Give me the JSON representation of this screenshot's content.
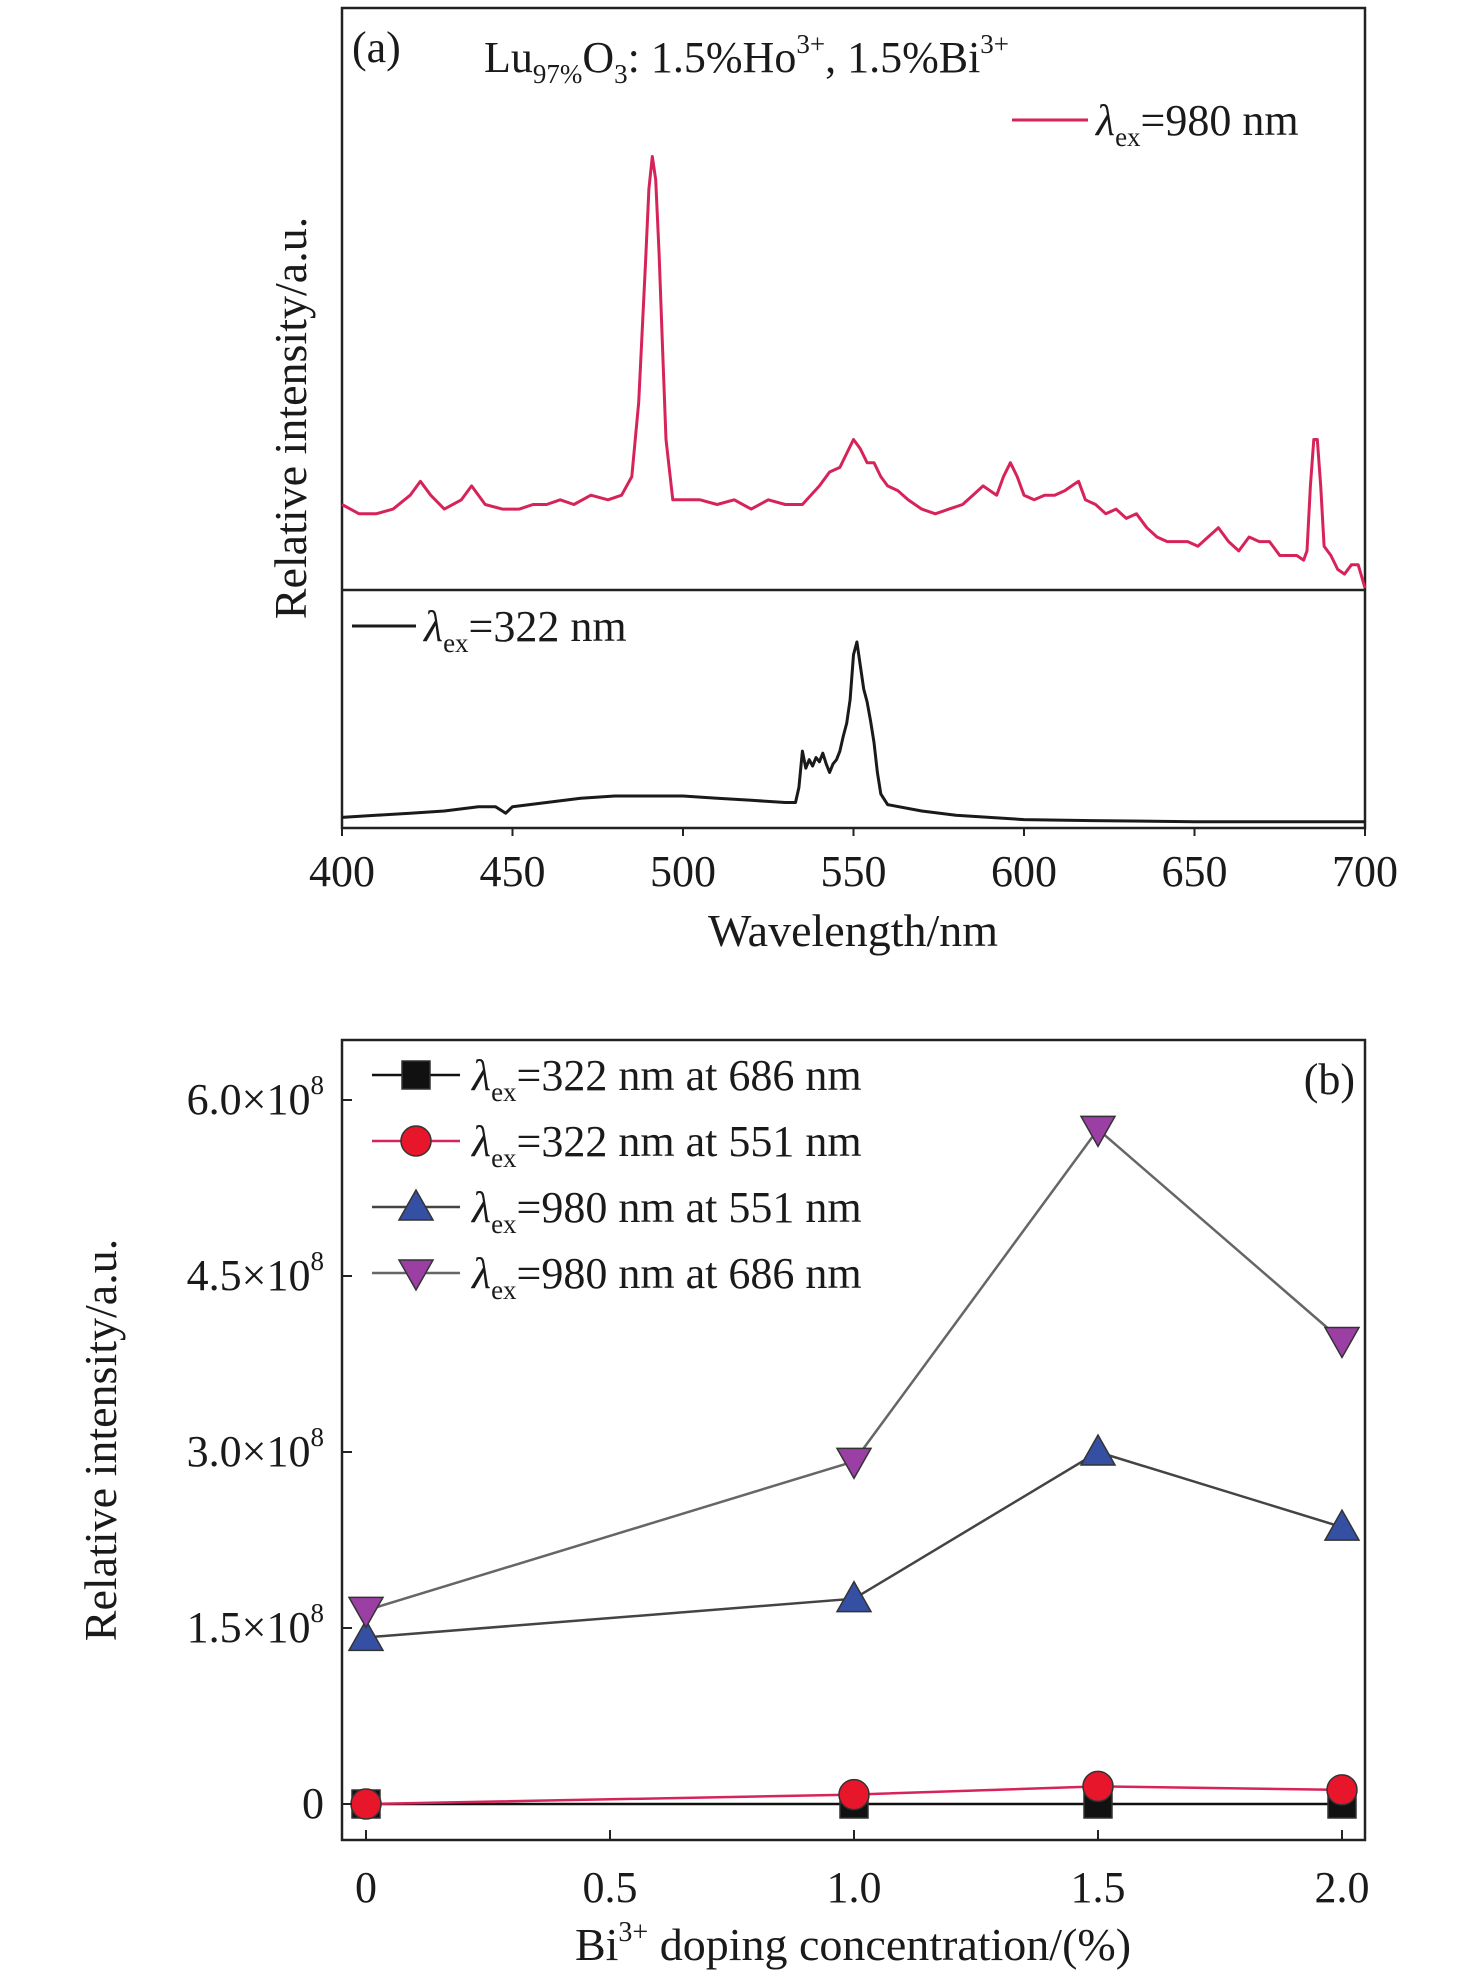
{
  "chart_data": [
    {
      "panel": "(a)",
      "type": "line",
      "title_parts": {
        "a": "Lu",
        "b": "97%",
        "c": "O",
        "d": "3",
        "e": ": 1.5%Ho",
        "f": "3+",
        "g": ", 1.5%Bi",
        "h": "3+"
      },
      "xlabel": "Wavelength/nm",
      "ylabel": "Relative intensity/a.u.",
      "xlim": [
        400,
        700
      ],
      "xticks": [
        "400",
        "450",
        "500",
        "550",
        "600",
        "650",
        "700"
      ],
      "grid": false,
      "series": [
        {
          "name": "980 nm",
          "legend": {
            "sym": "λ",
            "sub": "ex",
            "val": "=980 nm"
          },
          "color": "#d6245a",
          "subpanel": "top",
          "ylim": [
            0,
            1
          ],
          "points": [
            [
              400,
              0.18
            ],
            [
              405,
              0.16
            ],
            [
              410,
              0.16
            ],
            [
              415,
              0.17
            ],
            [
              420,
              0.2
            ],
            [
              423,
              0.23
            ],
            [
              426,
              0.2
            ],
            [
              430,
              0.17
            ],
            [
              435,
              0.19
            ],
            [
              438,
              0.22
            ],
            [
              442,
              0.18
            ],
            [
              447,
              0.17
            ],
            [
              452,
              0.17
            ],
            [
              456,
              0.18
            ],
            [
              460,
              0.18
            ],
            [
              464,
              0.19
            ],
            [
              468,
              0.18
            ],
            [
              473,
              0.2
            ],
            [
              478,
              0.19
            ],
            [
              482,
              0.2
            ],
            [
              485,
              0.24
            ],
            [
              487,
              0.4
            ],
            [
              489,
              0.7
            ],
            [
              490,
              0.86
            ],
            [
              491,
              0.93
            ],
            [
              492,
              0.88
            ],
            [
              493,
              0.72
            ],
            [
              494,
              0.52
            ],
            [
              495,
              0.32
            ],
            [
              497,
              0.19
            ],
            [
              500,
              0.19
            ],
            [
              505,
              0.19
            ],
            [
              510,
              0.18
            ],
            [
              515,
              0.19
            ],
            [
              520,
              0.17
            ],
            [
              525,
              0.19
            ],
            [
              530,
              0.18
            ],
            [
              535,
              0.18
            ],
            [
              540,
              0.22
            ],
            [
              543,
              0.25
            ],
            [
              546,
              0.26
            ],
            [
              548,
              0.29
            ],
            [
              550,
              0.32
            ],
            [
              552,
              0.3
            ],
            [
              554,
              0.27
            ],
            [
              556,
              0.27
            ],
            [
              558,
              0.24
            ],
            [
              560,
              0.22
            ],
            [
              563,
              0.21
            ],
            [
              566,
              0.19
            ],
            [
              570,
              0.17
            ],
            [
              574,
              0.16
            ],
            [
              578,
              0.17
            ],
            [
              582,
              0.18
            ],
            [
              585,
              0.2
            ],
            [
              588,
              0.22
            ],
            [
              590,
              0.21
            ],
            [
              592,
              0.2
            ],
            [
              594,
              0.24
            ],
            [
              596,
              0.27
            ],
            [
              598,
              0.24
            ],
            [
              600,
              0.2
            ],
            [
              603,
              0.19
            ],
            [
              606,
              0.2
            ],
            [
              609,
              0.2
            ],
            [
              612,
              0.21
            ],
            [
              614,
              0.22
            ],
            [
              616,
              0.23
            ],
            [
              618,
              0.19
            ],
            [
              621,
              0.18
            ],
            [
              624,
              0.16
            ],
            [
              627,
              0.17
            ],
            [
              630,
              0.15
            ],
            [
              633,
              0.16
            ],
            [
              636,
              0.13
            ],
            [
              639,
              0.11
            ],
            [
              642,
              0.1
            ],
            [
              645,
              0.1
            ],
            [
              648,
              0.1
            ],
            [
              651,
              0.09
            ],
            [
              654,
              0.11
            ],
            [
              657,
              0.13
            ],
            [
              660,
              0.1
            ],
            [
              663,
              0.08
            ],
            [
              666,
              0.11
            ],
            [
              669,
              0.1
            ],
            [
              672,
              0.1
            ],
            [
              675,
              0.07
            ],
            [
              678,
              0.07
            ],
            [
              680,
              0.07
            ],
            [
              682,
              0.06
            ],
            [
              683,
              0.08
            ],
            [
              684,
              0.22
            ],
            [
              685,
              0.32
            ],
            [
              686,
              0.32
            ],
            [
              687,
              0.22
            ],
            [
              688,
              0.09
            ],
            [
              690,
              0.07
            ],
            [
              692,
              0.04
            ],
            [
              694,
              0.03
            ],
            [
              696,
              0.05
            ],
            [
              698,
              0.05
            ],
            [
              700,
              0.0
            ]
          ]
        },
        {
          "name": "322 nm",
          "legend": {
            "sym": "λ",
            "sub": "ex",
            "val": "=322 nm"
          },
          "color": "#1a1a1a",
          "subpanel": "bottom",
          "ylim": [
            0,
            1
          ],
          "points": [
            [
              400,
              0.04
            ],
            [
              410,
              0.05
            ],
            [
              420,
              0.06
            ],
            [
              430,
              0.07
            ],
            [
              440,
              0.09
            ],
            [
              445,
              0.09
            ],
            [
              447,
              0.07
            ],
            [
              448,
              0.06
            ],
            [
              450,
              0.09
            ],
            [
              455,
              0.1
            ],
            [
              460,
              0.11
            ],
            [
              470,
              0.13
            ],
            [
              480,
              0.14
            ],
            [
              490,
              0.14
            ],
            [
              495,
              0.14
            ],
            [
              500,
              0.14
            ],
            [
              510,
              0.13
            ],
            [
              520,
              0.12
            ],
            [
              530,
              0.11
            ],
            [
              533,
              0.11
            ],
            [
              534,
              0.18
            ],
            [
              535,
              0.35
            ],
            [
              536,
              0.27
            ],
            [
              537,
              0.31
            ],
            [
              538,
              0.28
            ],
            [
              539,
              0.32
            ],
            [
              540,
              0.3
            ],
            [
              541,
              0.34
            ],
            [
              542,
              0.29
            ],
            [
              543,
              0.25
            ],
            [
              544,
              0.29
            ],
            [
              545,
              0.31
            ],
            [
              546,
              0.35
            ],
            [
              547,
              0.42
            ],
            [
              548,
              0.48
            ],
            [
              549,
              0.59
            ],
            [
              550,
              0.8
            ],
            [
              551,
              0.86
            ],
            [
              552,
              0.75
            ],
            [
              553,
              0.64
            ],
            [
              554,
              0.58
            ],
            [
              555,
              0.49
            ],
            [
              556,
              0.39
            ],
            [
              557,
              0.25
            ],
            [
              558,
              0.15
            ],
            [
              560,
              0.1
            ],
            [
              570,
              0.07
            ],
            [
              580,
              0.05
            ],
            [
              600,
              0.03
            ],
            [
              620,
              0.025
            ],
            [
              650,
              0.02
            ],
            [
              700,
              0.02
            ]
          ]
        }
      ]
    },
    {
      "panel": "(b)",
      "type": "line",
      "xlabel_parts": {
        "a": "Bi",
        "b": "3+",
        "c": " doping concentration/(%)"
      },
      "ylabel": "Relative intensity/a.u.",
      "xlim": [
        0,
        2.0
      ],
      "ylim": [
        0,
        600000000.0
      ],
      "xticks": [
        "0",
        "0.5",
        "1.0",
        "1.5",
        "2.0"
      ],
      "yticks": [
        {
          "mant": "0",
          "exp": ""
        },
        {
          "mant": "1.5×10",
          "exp": "8"
        },
        {
          "mant": "3.0×10",
          "exp": "8"
        },
        {
          "mant": "4.5×10",
          "exp": "8"
        },
        {
          "mant": "6.0×10",
          "exp": "8"
        }
      ],
      "legend_position": "top-left",
      "grid": false,
      "x": [
        0,
        1.0,
        1.5,
        2.0
      ],
      "series": [
        {
          "name": "322 nm at 686 nm",
          "legend": {
            "sym": "λ",
            "sub": "ex",
            "val": "=322 nm at 686 nm"
          },
          "marker": "square",
          "color": "#111111",
          "line_color": "#111111",
          "values": [
            0,
            0,
            0,
            0
          ]
        },
        {
          "name": "322 nm at 551 nm",
          "legend": {
            "sym": "λ",
            "sub": "ex",
            "val": "=322 nm at 551 nm"
          },
          "marker": "circle",
          "color": "#e8162a",
          "line_color": "#d6245a",
          "values": [
            0,
            8000000.0,
            15000000.0,
            12000000.0
          ]
        },
        {
          "name": "980 nm at 551 nm",
          "legend": {
            "sym": "λ",
            "sub": "ex",
            "val": "=980 nm at 551 nm"
          },
          "marker": "triangle-up",
          "color": "#3550a3",
          "line_color": "#444444",
          "values": [
            142000000.0,
            175000000.0,
            300000000.0,
            236000000.0
          ]
        },
        {
          "name": "980 nm at 686 nm",
          "legend": {
            "sym": "λ",
            "sub": "ex",
            "val": "=980 nm at 686 nm"
          },
          "marker": "triangle-down",
          "color": "#9b3fa5",
          "line_color": "#666666",
          "values": [
            165000000.0,
            292000000.0,
            575000000.0,
            395000000.0
          ]
        }
      ]
    }
  ]
}
